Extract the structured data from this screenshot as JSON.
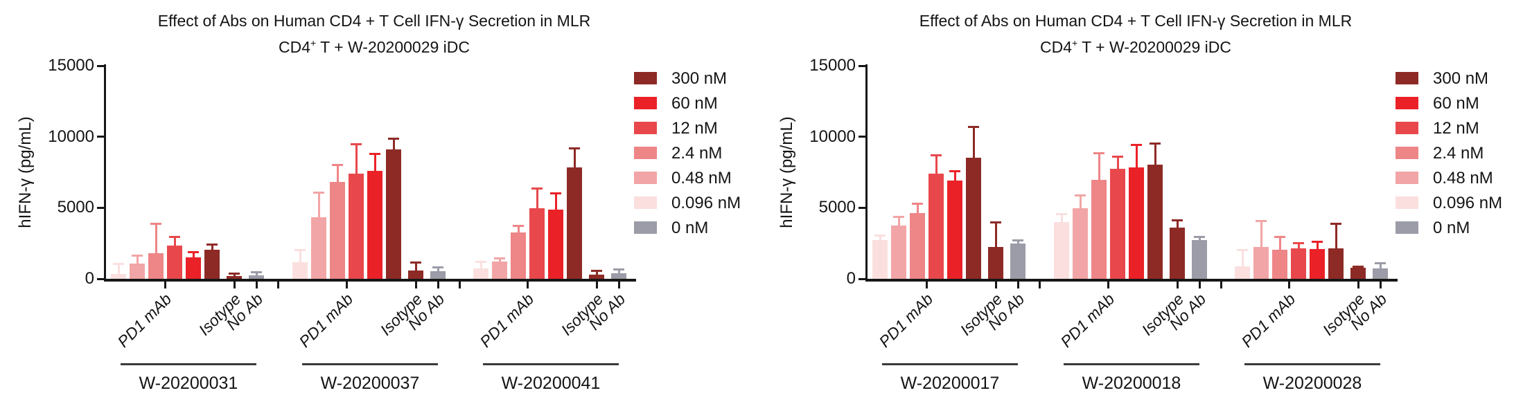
{
  "legend": {
    "entries": [
      {
        "label": "300 nM",
        "color": "#8D2A26"
      },
      {
        "label": "60 nM",
        "color": "#EA2127"
      },
      {
        "label": "12 nM",
        "color": "#E8484C"
      },
      {
        "label": "2.4 nM",
        "color": "#EE8587"
      },
      {
        "label": "0.48 nM",
        "color": "#F2A5A6"
      },
      {
        "label": "0.096 nM",
        "color": "#FBDFDF"
      },
      {
        "label": "0 nM",
        "color": "#9B9CA7"
      }
    ]
  },
  "chart_data": [
    {
      "type": "bar",
      "title": "Effect of Abs on Human CD4 + T Cell IFN-γ Secretion in MLR",
      "subtitle": "CD4+ T + W-20200029 iDC",
      "subtitle_parts": {
        "base": "CD4",
        "sup": "+",
        "rest": " T  +  W-20200029 iDC"
      },
      "ylabel": "hIFN-γ (pg/mL)",
      "ylim": [
        0,
        15000
      ],
      "ytick_values": [
        0,
        5000,
        10000,
        15000
      ],
      "ytick_labels": [
        "0",
        "5000",
        "10000",
        "15000"
      ],
      "x_category_labels": [
        "PD1 mAb",
        "Isotype",
        "No Ab"
      ],
      "concentrations": [
        "0.096 nM",
        "0.48 nM",
        "2.4 nM",
        "12 nM",
        "60 nM",
        "300 nM"
      ],
      "legend_position": "right",
      "grid": false,
      "groups": [
        {
          "name": "W-20200031",
          "pd1_mab": {
            "values": [
              350,
              1050,
              1800,
              2350,
              1500,
              2050
            ],
            "error_top": [
              1050,
              1650,
              3900,
              2950,
              1900,
              2450
            ]
          },
          "isotype": {
            "value": 180,
            "error_top": 400
          },
          "no_ab": {
            "value": 250,
            "error_top": 470
          }
        },
        {
          "name": "W-20200037",
          "pd1_mab": {
            "values": [
              1150,
              4350,
              6800,
              7400,
              7600,
              9100
            ],
            "error_top": [
              2050,
              6100,
              8050,
              9500,
              8800,
              9900
            ]
          },
          "isotype": {
            "value": 600,
            "error_top": 1150
          },
          "no_ab": {
            "value": 520,
            "error_top": 840
          }
        },
        {
          "name": "W-20200041",
          "pd1_mab": {
            "values": [
              750,
              1200,
              3250,
              4950,
              4850,
              7850
            ],
            "error_top": [
              1200,
              1450,
              3750,
              6400,
              6050,
              9200
            ]
          },
          "isotype": {
            "value": 300,
            "error_top": 580
          },
          "no_ab": {
            "value": 400,
            "error_top": 680
          }
        }
      ]
    },
    {
      "type": "bar",
      "title": "Effect of Abs on Human CD4 + T Cell IFN-γ Secretion in MLR",
      "subtitle": "CD4+ T + W-20200029 iDC",
      "subtitle_parts": {
        "base": "CD4",
        "sup": "+",
        "rest": " T  +  W-20200029 iDC"
      },
      "ylabel": "hIFN-γ (pg/mL)",
      "ylim": [
        0,
        15000
      ],
      "ytick_values": [
        0,
        5000,
        10000,
        15000
      ],
      "ytick_labels": [
        "0",
        "5000",
        "10000",
        "15000"
      ],
      "x_category_labels": [
        "PD1 mAb",
        "Isotype",
        "No Ab"
      ],
      "concentrations": [
        "0.096 nM",
        "0.48 nM",
        "2.4 nM",
        "12 nM",
        "60 nM",
        "300 nM"
      ],
      "legend_position": "right",
      "grid": false,
      "groups": [
        {
          "name": "W-20200017",
          "pd1_mab": {
            "values": [
              2750,
              3750,
              4650,
              7400,
              6900,
              8500
            ],
            "error_top": [
              3050,
              4400,
              5300,
              8700,
              7600,
              10700
            ]
          },
          "isotype": {
            "value": 2250,
            "error_top": 4000
          },
          "no_ab": {
            "value": 2500,
            "error_top": 2750
          }
        },
        {
          "name": "W-20200018",
          "pd1_mab": {
            "values": [
              4000,
              4950,
              6950,
              7750,
              7850,
              8050
            ],
            "error_top": [
              4600,
              5900,
              8850,
              8600,
              9450,
              9550
            ]
          },
          "isotype": {
            "value": 3600,
            "error_top": 4150
          },
          "no_ab": {
            "value": 2750,
            "error_top": 2950
          }
        },
        {
          "name": "W-20200028",
          "pd1_mab": {
            "values": [
              900,
              2250,
              2050,
              2150,
              2100,
              2150
            ],
            "error_top": [
              2050,
              4100,
              2950,
              2550,
              2650,
              3900
            ]
          },
          "isotype": {
            "value": 780,
            "error_top": 900
          },
          "no_ab": {
            "value": 720,
            "error_top": 1100
          }
        }
      ]
    }
  ]
}
